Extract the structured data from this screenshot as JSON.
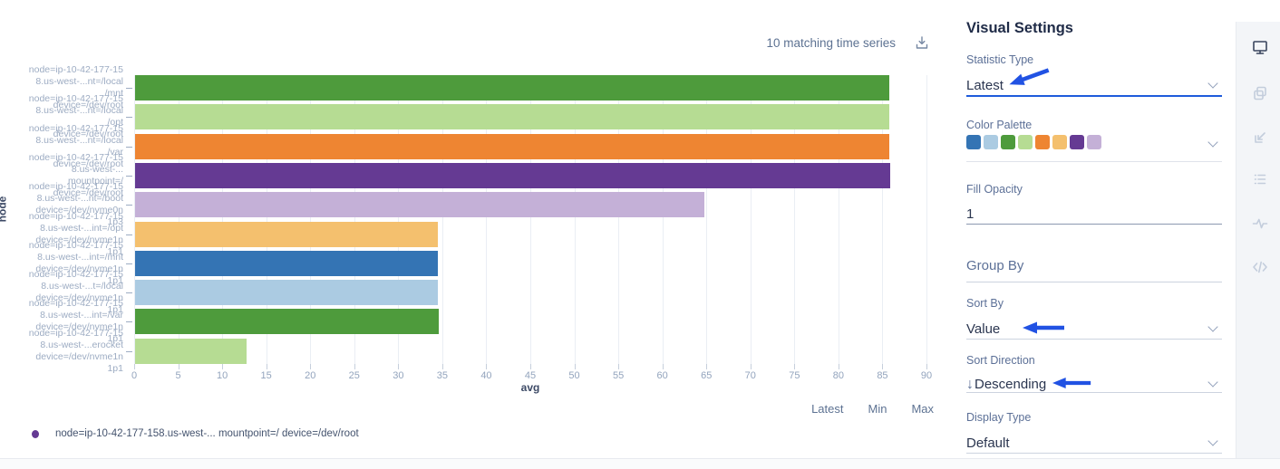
{
  "chart_header": {
    "matching_text": "10 matching time series"
  },
  "chart_data": {
    "type": "bar",
    "orientation": "horizontal",
    "title": "",
    "xlabel": "avg",
    "ylabel": "node",
    "xlim": [
      0,
      90
    ],
    "xticks": [
      0,
      5,
      10,
      15,
      20,
      25,
      30,
      35,
      40,
      45,
      50,
      55,
      60,
      65,
      70,
      75,
      80,
      85,
      90
    ],
    "grid": true,
    "bars": [
      {
        "label_lines": [
          "node=ip-10-42-177-15",
          "8.us-west-...nt=/local",
          "/mnt",
          "device=/dev/root"
        ],
        "value": 85.7,
        "color": "#4e9b3c"
      },
      {
        "label_lines": [
          "node=ip-10-42-177-15",
          "8.us-west-...nt=/local",
          "/opt",
          "device=/dev/root"
        ],
        "value": 85.7,
        "color": "#b6dc93"
      },
      {
        "label_lines": [
          "node=ip-10-42-177-15",
          "8.us-west-...nt=/local",
          "/var",
          "device=/dev/root"
        ],
        "value": 85.7,
        "color": "#ee8532"
      },
      {
        "label_lines": [
          "node=ip-10-42-177-15",
          "8.us-west-...",
          "mountpoint=/",
          "device=/dev/root"
        ],
        "value": 85.8,
        "color": "#653a93"
      },
      {
        "label_lines": [
          "node=ip-10-42-177-15",
          "8.us-west-...nt=/boot",
          "device=/dev/nvme0n",
          "1p3"
        ],
        "value": 64.7,
        "color": "#c4b0d7"
      },
      {
        "label_lines": [
          "node=ip-10-42-177-15",
          "8.us-west-...int=/opt",
          "device=/dev/nvme1n",
          "1p1"
        ],
        "value": 34.4,
        "color": "#f4c06e"
      },
      {
        "label_lines": [
          "node=ip-10-42-177-15",
          "8.us-west-...int=/mnt",
          "device=/dev/nvme1n",
          "1p1"
        ],
        "value": 34.4,
        "color": "#3474b4"
      },
      {
        "label_lines": [
          "node=ip-10-42-177-15",
          "8.us-west-...t=/local",
          "device=/dev/nvme1n",
          "1p1"
        ],
        "value": 34.4,
        "color": "#abcbe2"
      },
      {
        "label_lines": [
          "node=ip-10-42-177-15",
          "8.us-west-...int=/var",
          "device=/dev/nvme1n",
          "1p1"
        ],
        "value": 34.5,
        "color": "#4e9b3c"
      },
      {
        "label_lines": [
          "node=ip-10-42-177-15",
          "8.us-west-...erocket",
          "device=/dev/nvme1n",
          "1p1"
        ],
        "value": 12.7,
        "color": "#b6dc93"
      }
    ]
  },
  "legend": {
    "columns": [
      "Latest",
      "Min",
      "Max"
    ],
    "items": [
      {
        "dot_color": "#653a93",
        "label": "node=ip-10-42-177-158.us-west-... mountpoint=/ device=/dev/root"
      }
    ]
  },
  "panel": {
    "title": "Visual Settings",
    "statistic_type": {
      "label": "Statistic Type",
      "value": "Latest"
    },
    "color_palette": {
      "label": "Color Palette",
      "colors": [
        "#3474b4",
        "#abcbe2",
        "#4e9b3c",
        "#b6dc93",
        "#ee8532",
        "#f4c06e",
        "#653a93",
        "#c4b0d7"
      ]
    },
    "fill_opacity": {
      "label": "Fill Opacity",
      "value": "1"
    },
    "group_by": {
      "label": "Group By"
    },
    "sort_by": {
      "label": "Sort By",
      "value": "Value"
    },
    "sort_direction": {
      "label": "Sort Direction",
      "value": "Descending",
      "icon": "↓"
    },
    "display_type": {
      "label": "Display Type",
      "value": "Default"
    }
  },
  "annotations": {
    "arrow_color": "#2152e3",
    "targets": [
      "statistic-type",
      "sort-by",
      "sort-direction"
    ]
  },
  "toolbar": {
    "icons": [
      "monitor-icon",
      "copy-icon",
      "chart-axes-icon",
      "list-icon",
      "waveform-icon",
      "code-icon"
    ]
  }
}
